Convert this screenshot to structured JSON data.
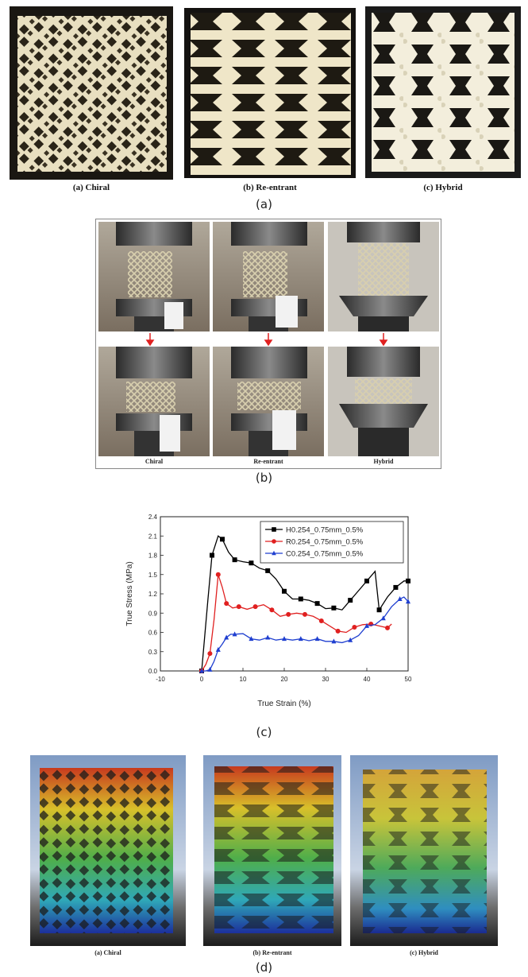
{
  "panel_a": {
    "captions": [
      "(a) Chiral",
      "(b) Re-entrant",
      "(c) Hybrid"
    ],
    "label": "(a)"
  },
  "panel_b": {
    "captions": [
      "Chiral",
      "Re-entrant",
      "Hybrid"
    ],
    "label": "(b)"
  },
  "panel_c": {
    "label": "(c)"
  },
  "panel_d": {
    "captions": [
      "(a) Chiral",
      "(b) Re-entrant",
      "(c) Hybrid"
    ],
    "label": "(d)"
  },
  "chart_data": {
    "type": "line",
    "title": "",
    "xlabel": "True Strain (%)",
    "ylabel": "True Stress (MPa)",
    "xlim": [
      -10,
      50
    ],
    "ylim": [
      0.0,
      2.4
    ],
    "xticks": [
      "-10",
      "0",
      "10",
      "20",
      "30",
      "40",
      "50"
    ],
    "yticks": [
      "0.0",
      "0.3",
      "0.6",
      "0.9",
      "1.2",
      "1.5",
      "1.8",
      "2.1",
      "2.4"
    ],
    "legend_position": "top-right",
    "series": [
      {
        "name": "H0.254_0.75mm_0.5%",
        "color": "#000000",
        "marker": "square",
        "x": [
          0,
          1.5,
          2.5,
          4,
          5,
          6.5,
          8,
          10,
          12,
          14,
          16,
          18,
          20,
          22,
          24,
          26,
          28,
          30,
          32,
          34,
          36,
          38,
          40,
          42,
          43,
          45,
          47,
          49,
          50
        ],
        "y": [
          0.0,
          1.1,
          1.8,
          2.1,
          2.05,
          1.85,
          1.73,
          1.7,
          1.68,
          1.6,
          1.56,
          1.43,
          1.24,
          1.12,
          1.12,
          1.1,
          1.05,
          0.97,
          0.98,
          0.95,
          1.1,
          1.25,
          1.4,
          1.55,
          0.95,
          1.15,
          1.3,
          1.4,
          1.4
        ]
      },
      {
        "name": "R0.254_0.75mm_0.5%",
        "color": "#e02020",
        "marker": "circle",
        "x": [
          0,
          1,
          2,
          3,
          4,
          5,
          6,
          7.5,
          9,
          11,
          13,
          15,
          17,
          19,
          21,
          23,
          25,
          27,
          29,
          31,
          33,
          35,
          37,
          39,
          41,
          43,
          45,
          46
        ],
        "y": [
          0.0,
          0.1,
          0.27,
          0.8,
          1.5,
          1.3,
          1.05,
          0.98,
          1.0,
          0.96,
          1.0,
          1.03,
          0.95,
          0.85,
          0.88,
          0.9,
          0.88,
          0.85,
          0.78,
          0.7,
          0.62,
          0.6,
          0.68,
          0.72,
          0.73,
          0.7,
          0.67,
          0.73
        ]
      },
      {
        "name": "C0.254_0.75mm_0.5%",
        "color": "#1f3fd0",
        "marker": "triangle",
        "x": [
          0,
          1,
          2,
          3,
          4,
          5,
          6,
          7,
          8,
          10,
          12,
          14,
          16,
          18,
          20,
          22,
          24,
          26,
          28,
          30,
          32,
          34,
          36,
          38,
          40,
          42,
          44,
          46,
          48,
          49,
          50
        ],
        "y": [
          0.0,
          0.0,
          0.02,
          0.15,
          0.33,
          0.42,
          0.52,
          0.57,
          0.57,
          0.58,
          0.5,
          0.48,
          0.52,
          0.48,
          0.5,
          0.48,
          0.5,
          0.47,
          0.5,
          0.46,
          0.46,
          0.44,
          0.48,
          0.55,
          0.7,
          0.72,
          0.82,
          1.0,
          1.12,
          1.15,
          1.08
        ]
      }
    ]
  }
}
